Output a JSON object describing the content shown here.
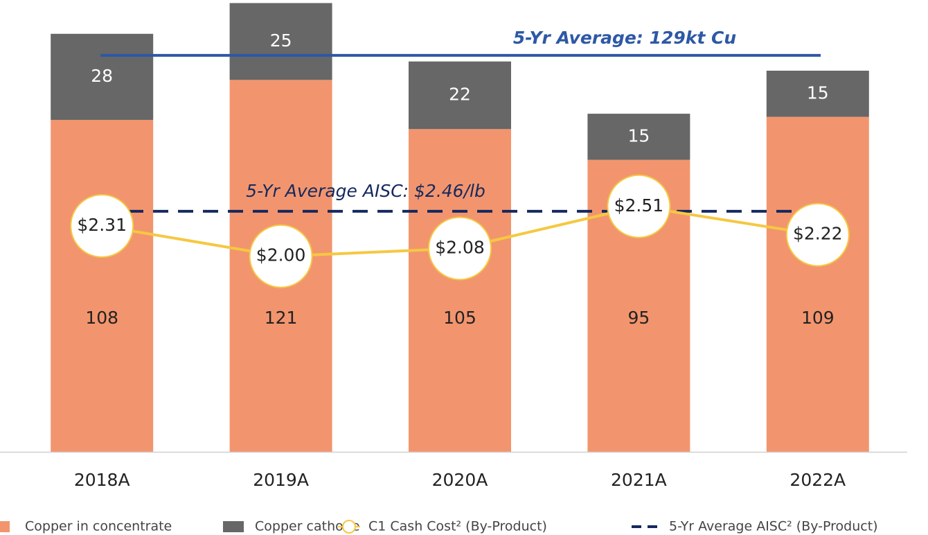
{
  "chart_data": {
    "type": "bar",
    "stacked": true,
    "categories": [
      "2018A",
      "2019A",
      "2020A",
      "2021A",
      "2022A"
    ],
    "series": [
      {
        "name": "Copper in concentrate",
        "color": "#F2956E",
        "values": [
          108,
          121,
          105,
          95,
          109
        ]
      },
      {
        "name": "Copper cathode",
        "color": "#666766",
        "values": [
          28,
          25,
          22,
          15,
          15
        ]
      },
      {
        "name": "C1 Cash Cost² (By-Product)",
        "type": "line",
        "axis": "y2",
        "color": "#F5C842",
        "values": [
          2.31,
          2.0,
          2.08,
          2.51,
          2.22
        ],
        "value_labels": [
          "$2.31",
          "$2.00",
          "$2.08",
          "$2.51",
          "$2.22"
        ]
      }
    ],
    "reference_lines": [
      {
        "name": "5-Yr Average AISC² (By-Product)",
        "axis": "y2",
        "value": 2.46,
        "color": "#14295E",
        "style": "dashed",
        "label": "5-Yr Average AISC: $2.46/lb"
      },
      {
        "axis": "y",
        "value": 129,
        "color": "#2E58A6",
        "style": "solid",
        "label": "5-Yr Average: 129kt Cu"
      }
    ],
    "ylim": [
      0,
      147
    ],
    "y2lim": [
      0,
      4.62
    ],
    "legend": "bottom"
  }
}
